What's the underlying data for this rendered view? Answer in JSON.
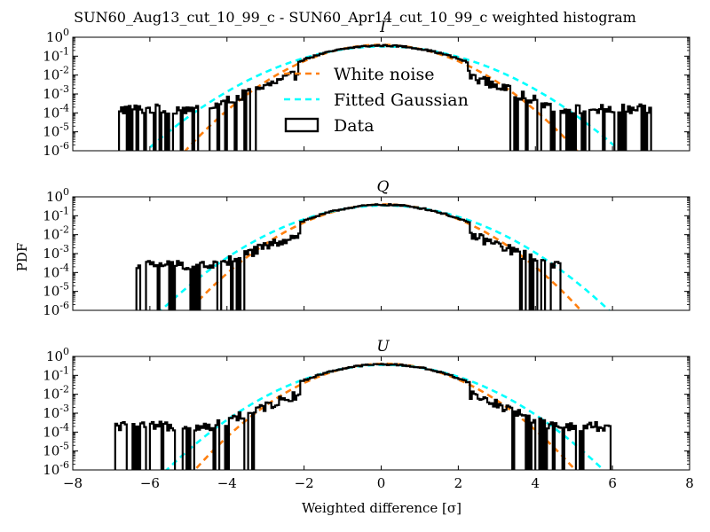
{
  "figure_title": "SUN60_Aug13_cut_10_99_c - SUN60_Apr14_cut_10_99_c weighted histogram",
  "ylabel": "PDF",
  "xlabel": "Weighted difference [σ]",
  "colors": {
    "white_noise": "#ff7f0e",
    "fitted_gaussian": "#00ffff",
    "data": "#000000"
  },
  "legend": {
    "white_noise": "White noise",
    "fitted_gaussian": "Fitted Gaussian",
    "data": "Data"
  },
  "chart_data": [
    {
      "type": "line",
      "title": "I",
      "xlim": [
        -8,
        8
      ],
      "ylim_log10": [
        -6,
        0
      ],
      "xticks": [
        "−8",
        "−6",
        "−4",
        "−2",
        "0",
        "2",
        "4",
        "6",
        "8"
      ],
      "yticks": [
        "10^-6",
        "10^-5",
        "10^-4",
        "10^-3",
        "10^-2",
        "10^-1",
        "10^0"
      ],
      "series": [
        {
          "name": "White noise",
          "style": "dashed",
          "model": "gaussian",
          "mu": 0,
          "sigma": 1.0,
          "x_range": [
            -6,
            6
          ]
        },
        {
          "name": "Fitted Gaussian",
          "style": "dashed",
          "model": "gaussian",
          "mu": 0.05,
          "sigma": 1.22,
          "x_range": [
            -6.2,
            6.2
          ]
        },
        {
          "name": "Data",
          "style": "histogram",
          "model": "heavy-tailed",
          "mu": 0.0,
          "sigma": 1.1,
          "x_range": [
            -7.0,
            7.0
          ],
          "floor_log10": -3.8
        }
      ]
    },
    {
      "type": "line",
      "title": "Q",
      "xlim": [
        -8,
        8
      ],
      "ylim_log10": [
        -6,
        0
      ],
      "xticks": [
        "−8",
        "−6",
        "−4",
        "−2",
        "0",
        "2",
        "4",
        "6",
        "8"
      ],
      "yticks": [
        "10^-6",
        "10^-5",
        "10^-4",
        "10^-3",
        "10^-2",
        "10^-1",
        "10^0"
      ],
      "series": [
        {
          "name": "White noise",
          "style": "dashed",
          "model": "gaussian",
          "mu": 0.1,
          "sigma": 1.0,
          "x_range": [
            -6,
            6
          ]
        },
        {
          "name": "Fitted Gaussian",
          "style": "dashed",
          "model": "gaussian",
          "mu": 0.1,
          "sigma": 1.15,
          "x_range": [
            -6.2,
            6.2
          ]
        },
        {
          "name": "Data",
          "style": "histogram",
          "model": "heavy-tailed",
          "mu": 0.05,
          "sigma": 1.05,
          "x_range": [
            -6.4,
            4.6
          ],
          "floor_log10": -3.6
        }
      ]
    },
    {
      "type": "line",
      "title": "U",
      "xlim": [
        -8,
        8
      ],
      "ylim_log10": [
        -6,
        0
      ],
      "xticks": [
        "−8",
        "−6",
        "−4",
        "−2",
        "0",
        "2",
        "4",
        "6",
        "8"
      ],
      "yticks": [
        "10^-6",
        "10^-5",
        "10^-4",
        "10^-3",
        "10^-2",
        "10^-1",
        "10^0"
      ],
      "series": [
        {
          "name": "White noise",
          "style": "dashed",
          "model": "gaussian",
          "mu": 0.1,
          "sigma": 0.97,
          "x_range": [
            -6,
            6
          ]
        },
        {
          "name": "Fitted Gaussian",
          "style": "dashed",
          "model": "gaussian",
          "mu": 0.1,
          "sigma": 1.12,
          "x_range": [
            -6.2,
            6.2
          ]
        },
        {
          "name": "Data",
          "style": "histogram",
          "model": "heavy-tailed",
          "mu": 0.05,
          "sigma": 1.05,
          "x_range": [
            -6.9,
            5.9
          ],
          "floor_log10": -3.7
        }
      ]
    }
  ]
}
